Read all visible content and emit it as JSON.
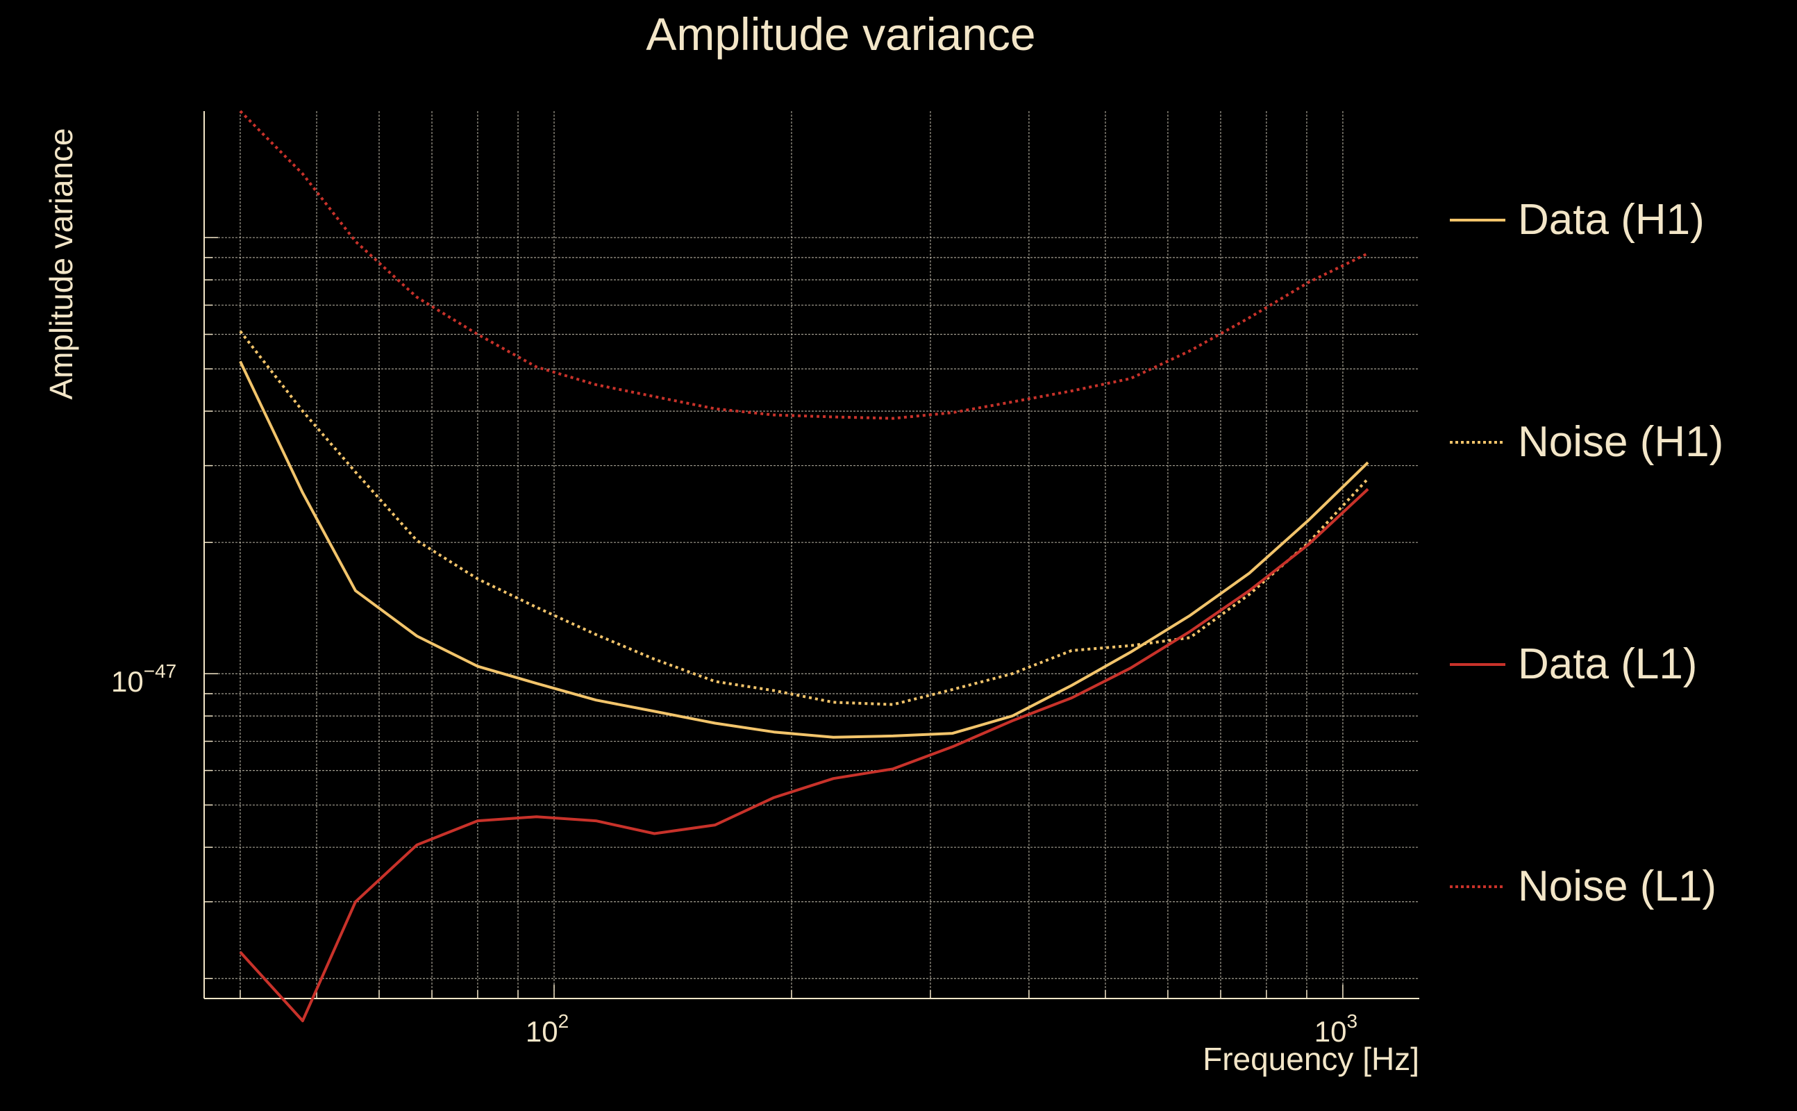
{
  "chart_data": {
    "type": "line",
    "title": "Amplitude variance",
    "xlabel": "Frequency [Hz]",
    "ylabel": "Amplitude variance",
    "xscale": "log",
    "yscale": "log",
    "xlim": [
      36,
      1250
    ],
    "ylim": [
      1.8e-48,
      1.95e-46
    ],
    "x_ticks": [
      {
        "value": 100,
        "base": "10",
        "exp": "2"
      },
      {
        "value": 1000,
        "base": "10",
        "exp": "3"
      }
    ],
    "y_ticks": [
      {
        "value": 1e-47,
        "base": "10",
        "exp": "−47"
      }
    ],
    "grid": true,
    "legend_position": "right",
    "x": [
      40,
      48,
      56,
      67,
      80,
      95,
      113,
      134,
      160,
      190,
      226,
      269,
      320,
      381,
      453,
      538,
      640,
      761,
      905,
      1076
    ],
    "series": [
      {
        "name": "Data (H1)",
        "color": "#f2c46b",
        "style": "solid",
        "values": [
          5.2e-47,
          2.6e-47,
          1.55e-47,
          1.22e-47,
          1.04e-47,
          9.5e-48,
          8.7e-48,
          8.2e-48,
          7.7e-48,
          7.35e-48,
          7.15e-48,
          7.2e-48,
          7.3e-48,
          8e-48,
          9.4e-48,
          1.12e-47,
          1.36e-47,
          1.7e-47,
          2.25e-47,
          3.05e-47
        ]
      },
      {
        "name": "Noise (H1)",
        "color": "#f2c46b",
        "style": "dotted",
        "values": [
          6.1e-47,
          4e-47,
          2.9e-47,
          2.02e-47,
          1.65e-47,
          1.42e-47,
          1.23e-47,
          1.08e-47,
          9.6e-48,
          9.15e-48,
          8.6e-48,
          8.5e-48,
          9.2e-48,
          1e-47,
          1.13e-47,
          1.16e-47,
          1.21e-47,
          1.52e-47,
          2e-47,
          2.8e-47
        ]
      },
      {
        "name": "Data (L1)",
        "color": "#c8322a",
        "style": "solid",
        "values": [
          2.3e-48,
          1.6e-48,
          3e-48,
          4.05e-48,
          4.6e-48,
          4.7e-48,
          4.6e-48,
          4.3e-48,
          4.5e-48,
          5.2e-48,
          5.75e-48,
          6.05e-48,
          6.8e-48,
          7.8e-48,
          8.8e-48,
          1.03e-47,
          1.25e-47,
          1.55e-47,
          1.98e-47,
          2.65e-47
        ]
      },
      {
        "name": "Noise (L1)",
        "color": "#c8322a",
        "style": "dotted",
        "values": [
          1.95e-46,
          1.4e-46,
          9.8e-47,
          7.3e-47,
          6e-47,
          5.05e-47,
          4.6e-47,
          4.32e-47,
          4.05e-47,
          3.92e-47,
          3.88e-47,
          3.85e-47,
          3.97e-47,
          4.2e-47,
          4.45e-47,
          4.75e-47,
          5.5e-47,
          6.55e-47,
          7.9e-47,
          9.2e-47
        ]
      }
    ]
  }
}
